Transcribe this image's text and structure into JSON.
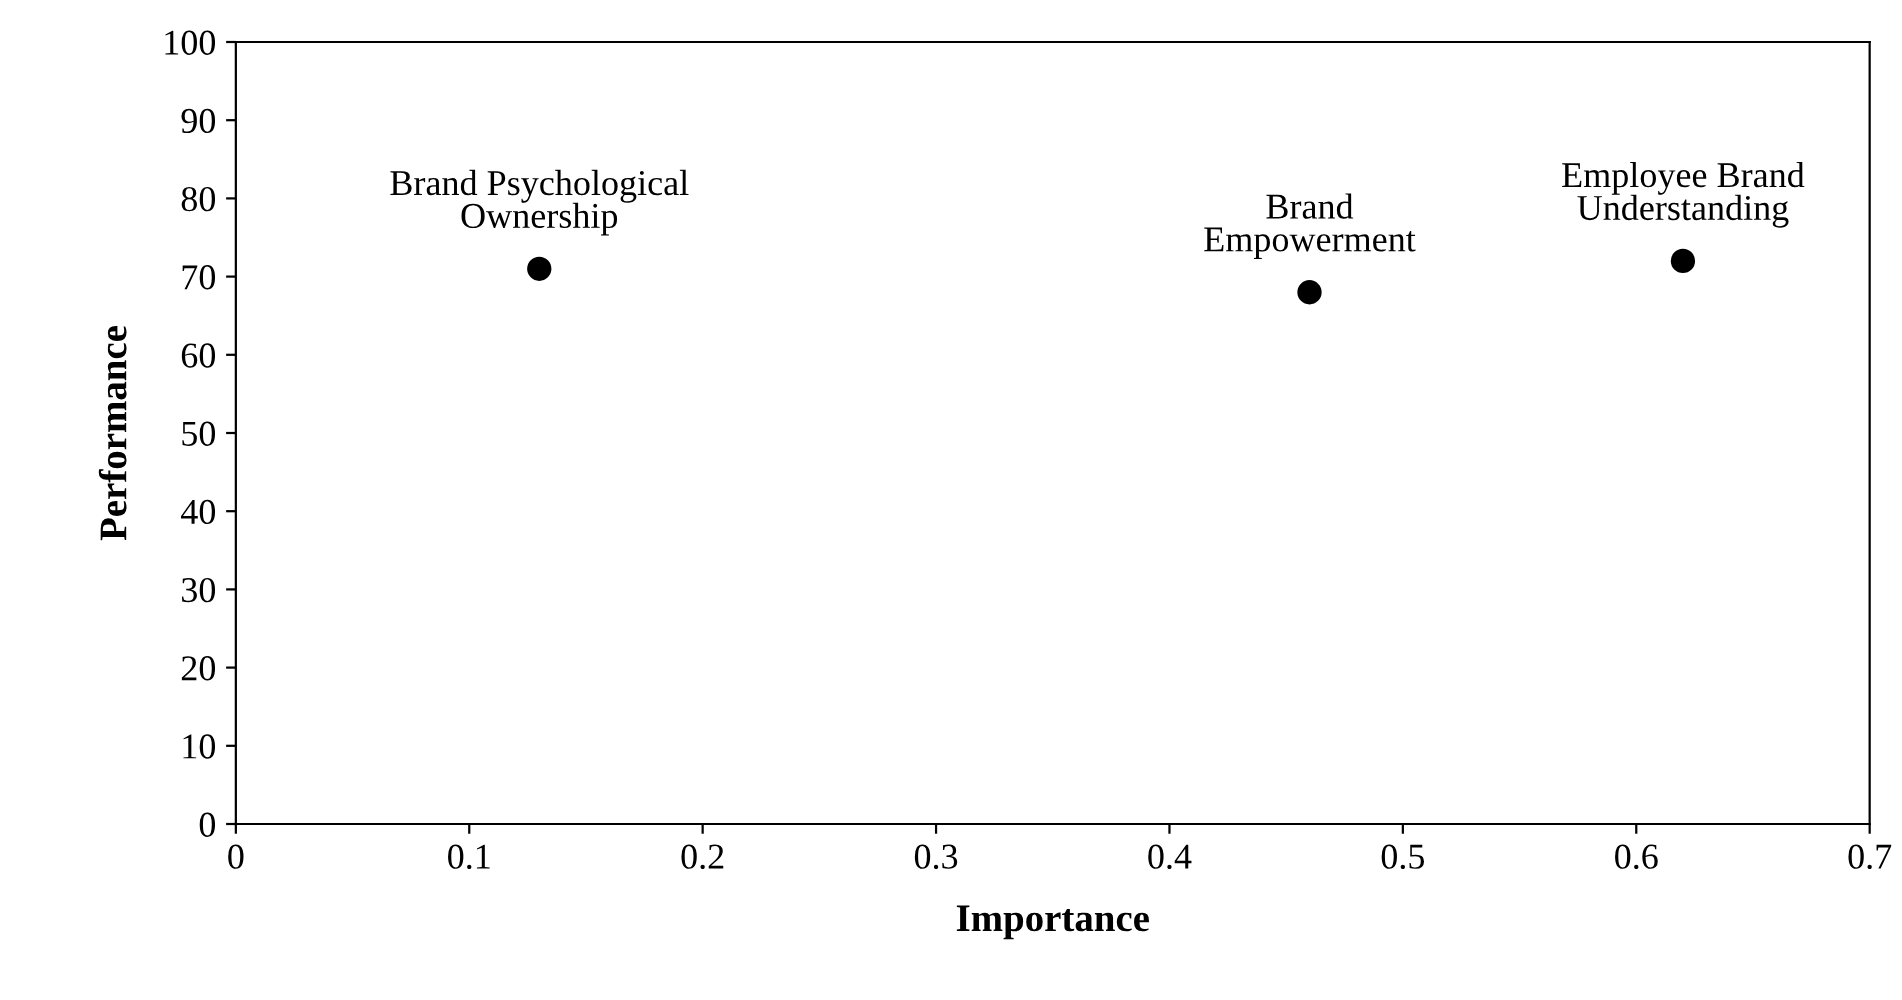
{
  "chart_data": {
    "type": "scatter",
    "xlabel": "Importance",
    "ylabel": "Performance",
    "x": [
      0.13,
      0.46,
      0.62
    ],
    "values": [
      71,
      68,
      72
    ],
    "color": "#000000",
    "marker": "circle",
    "xlim": [
      0,
      0.7
    ],
    "xticks": [
      0,
      0.1,
      0.2,
      0.3,
      0.4,
      0.5,
      0.6,
      0.7
    ],
    "ylim": [
      0,
      100
    ],
    "yticks": [
      0,
      10,
      20,
      30,
      40,
      50,
      60,
      70,
      80,
      90,
      100
    ],
    "grid": false,
    "annotations": [
      {
        "text": "Brand Psychological\nOwnership",
        "x": 0.13,
        "y": 71
      },
      {
        "text": "Brand\nEmpowerment",
        "x": 0.46,
        "y": 68
      },
      {
        "text": "Employee Brand\nUnderstanding",
        "x": 0.62,
        "y": 72
      }
    ]
  }
}
